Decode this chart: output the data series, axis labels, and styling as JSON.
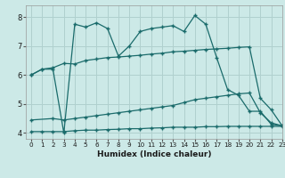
{
  "xlabel": "Humidex (Indice chaleur)",
  "bg_color": "#cce9e7",
  "grid_color": "#b0d0ce",
  "line_color": "#1a6b6b",
  "xlim": [
    -0.5,
    23
  ],
  "ylim": [
    3.8,
    8.4
  ],
  "yticks": [
    4,
    5,
    6,
    7,
    8
  ],
  "xticks": [
    0,
    1,
    2,
    3,
    4,
    5,
    6,
    7,
    8,
    9,
    10,
    11,
    12,
    13,
    14,
    15,
    16,
    17,
    18,
    19,
    20,
    21,
    22,
    23
  ],
  "line_main_x": [
    0,
    1,
    2,
    3,
    4,
    5,
    6,
    7,
    8,
    9,
    10,
    11,
    12,
    13,
    14,
    15,
    16,
    17,
    18,
    19,
    20,
    21,
    22,
    23
  ],
  "line_main_y": [
    6.0,
    6.2,
    6.2,
    4.0,
    7.75,
    7.65,
    7.8,
    7.6,
    6.65,
    7.0,
    7.5,
    7.6,
    7.65,
    7.7,
    7.5,
    8.05,
    7.75,
    6.6,
    5.5,
    5.3,
    4.75,
    4.75,
    4.3,
    4.25
  ],
  "line_upper_x": [
    0,
    1,
    2,
    3,
    4,
    5,
    6,
    7,
    8,
    9,
    10,
    11,
    12,
    13,
    14,
    15,
    16,
    17,
    18,
    19,
    20,
    21,
    22,
    23
  ],
  "line_upper_y": [
    6.0,
    6.2,
    6.25,
    6.4,
    6.38,
    6.5,
    6.55,
    6.6,
    6.62,
    6.65,
    6.68,
    6.72,
    6.75,
    6.8,
    6.82,
    6.85,
    6.88,
    6.9,
    6.92,
    6.95,
    6.97,
    5.2,
    4.8,
    4.25
  ],
  "line_mid_x": [
    0,
    2,
    3,
    4,
    5,
    6,
    7,
    8,
    9,
    10,
    11,
    12,
    13,
    14,
    15,
    16,
    17,
    18,
    19,
    20,
    21,
    22,
    23
  ],
  "line_mid_y": [
    4.45,
    4.5,
    4.45,
    4.5,
    4.55,
    4.6,
    4.65,
    4.7,
    4.75,
    4.8,
    4.85,
    4.9,
    4.95,
    5.05,
    5.15,
    5.2,
    5.25,
    5.3,
    5.35,
    5.38,
    4.7,
    4.35,
    4.25
  ],
  "line_bot_x": [
    0,
    1,
    2,
    3,
    4,
    5,
    6,
    7,
    8,
    9,
    10,
    11,
    12,
    13,
    14,
    15,
    16,
    17,
    18,
    19,
    20,
    21,
    22,
    23
  ],
  "line_bot_y": [
    4.05,
    4.05,
    4.05,
    4.05,
    4.08,
    4.1,
    4.1,
    4.12,
    4.13,
    4.15,
    4.15,
    4.17,
    4.18,
    4.2,
    4.2,
    4.2,
    4.22,
    4.22,
    4.23,
    4.23,
    4.23,
    4.23,
    4.23,
    4.23
  ]
}
